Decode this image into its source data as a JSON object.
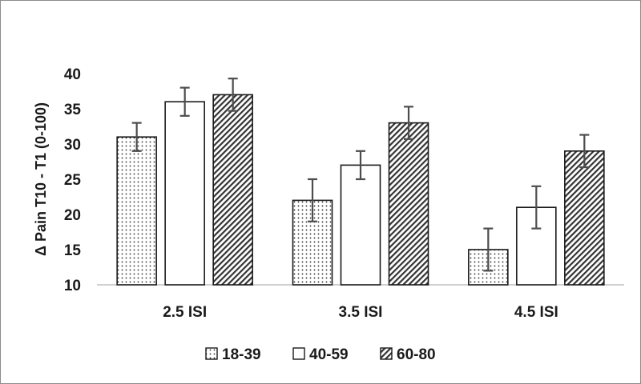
{
  "chart_data": {
    "type": "bar",
    "categories": [
      "2.5 ISI",
      "3.5 ISI",
      "4.5 ISI"
    ],
    "series": [
      {
        "name": "18-39",
        "values": [
          31,
          22,
          15
        ],
        "error": [
          2,
          3,
          3
        ],
        "pattern": "dots"
      },
      {
        "name": "40-59",
        "values": [
          36,
          27,
          21
        ],
        "error": [
          2,
          2,
          3
        ],
        "pattern": "blank"
      },
      {
        "name": "60-80",
        "values": [
          37,
          33,
          29
        ],
        "error": [
          2.3,
          2.3,
          2.3
        ],
        "pattern": "hatch"
      }
    ],
    "ylabel": "Δ Pain T10 - T1 (0-100)",
    "ylim": [
      10,
      40
    ],
    "yticks": [
      10,
      15,
      20,
      25,
      30,
      35,
      40
    ],
    "grid": false,
    "legend": "bottom",
    "colors": {
      "bar_stroke": "#1a1a1a",
      "error_bar": "#4d4d4d",
      "axis": "#bfbfbf"
    }
  }
}
